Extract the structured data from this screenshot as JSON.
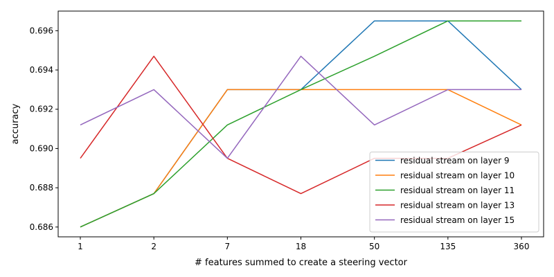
{
  "chart_data": {
    "type": "line",
    "title": "",
    "xlabel": "# features summed to create a steering vector",
    "ylabel": "accuracy",
    "categories": [
      "1",
      "2",
      "7",
      "18",
      "50",
      "135",
      "360"
    ],
    "ylim": [
      0.6855,
      0.697
    ],
    "yticks": [
      0.686,
      0.688,
      0.69,
      0.692,
      0.694,
      0.696
    ],
    "ytick_labels": [
      "0.686",
      "0.688",
      "0.690",
      "0.692",
      "0.694",
      "0.696"
    ],
    "grid": false,
    "legend_position": "lower right",
    "series": [
      {
        "name": "residual stream on layer 9",
        "color": "#1f77b4",
        "values": [
          0.686,
          0.6877,
          0.693,
          0.693,
          0.6965,
          0.6965,
          0.693
        ]
      },
      {
        "name": "residual stream on layer 10",
        "color": "#ff7f0e",
        "values": [
          0.686,
          0.6877,
          0.693,
          0.693,
          0.693,
          0.693,
          0.6912
        ]
      },
      {
        "name": "residual stream on layer 11",
        "color": "#2ca02c",
        "values": [
          0.686,
          0.6877,
          0.6912,
          0.693,
          0.6947,
          0.6965,
          0.6965
        ]
      },
      {
        "name": "residual stream on layer 13",
        "color": "#d62728",
        "values": [
          0.6895,
          0.6947,
          0.6895,
          0.6877,
          0.6895,
          0.6895,
          0.6912
        ]
      },
      {
        "name": "residual stream on layer 15",
        "color": "#9467bd",
        "values": [
          0.6912,
          0.693,
          0.6895,
          0.6947,
          0.6912,
          0.693,
          0.693
        ]
      }
    ]
  }
}
